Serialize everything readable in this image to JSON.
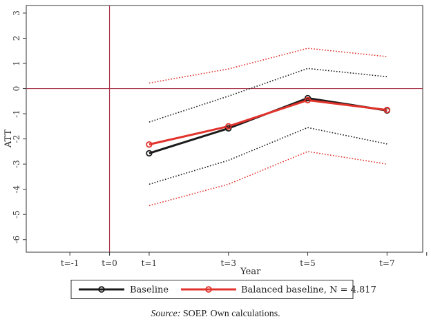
{
  "chart_data": {
    "type": "line",
    "xlabel": "Year",
    "ylabel": "ATT",
    "x_ticks": [
      {
        "x": -1,
        "label": "t=-1"
      },
      {
        "x": 0,
        "label": "t=0"
      },
      {
        "x": 1,
        "label": "t=1"
      },
      {
        "x": 3,
        "label": "t=3"
      },
      {
        "x": 5,
        "label": "t=5"
      },
      {
        "x": 7,
        "label": "t=7"
      }
    ],
    "y_ticks": [
      3,
      2,
      1,
      0,
      -1,
      -2,
      -3,
      -4,
      -5,
      -6
    ],
    "xlim": [
      -2.1,
      7.9
    ],
    "ylim": [
      -6.5,
      3.3
    ],
    "reference_lines": {
      "vertical_x": 0,
      "horizontal_y": 0,
      "color": "#a8324a"
    },
    "series": [
      {
        "name": "Baseline",
        "style": "solid-marker",
        "color": "#1a1a1a",
        "x": [
          1,
          3,
          5,
          7
        ],
        "y": [
          -2.57,
          -1.58,
          -0.38,
          -0.87
        ]
      },
      {
        "name": "Balanced baseline, N = 4.817",
        "style": "solid-marker",
        "color": "#e2322c",
        "x": [
          1,
          3,
          5,
          7
        ],
        "y": [
          -2.22,
          -1.5,
          -0.46,
          -0.85
        ]
      }
    ],
    "confidence_bands": [
      {
        "of": "Baseline",
        "color": "#1a1a1a",
        "upper": [
          -1.33,
          -0.3,
          0.8,
          0.47
        ],
        "lower": [
          -3.8,
          -2.85,
          -1.55,
          -2.2
        ]
      },
      {
        "of": "Balanced baseline, N = 4.817",
        "color": "#e2322c",
        "upper": [
          0.22,
          0.78,
          1.6,
          1.27
        ],
        "lower": [
          -4.65,
          -3.8,
          -2.5,
          -3.0
        ]
      }
    ],
    "legend": {
      "position": "bottom",
      "entries": [
        "Baseline",
        "Balanced baseline, N = 4.817"
      ]
    }
  },
  "source": {
    "label": "Source:",
    "text": " SOEP. Own calculations."
  }
}
